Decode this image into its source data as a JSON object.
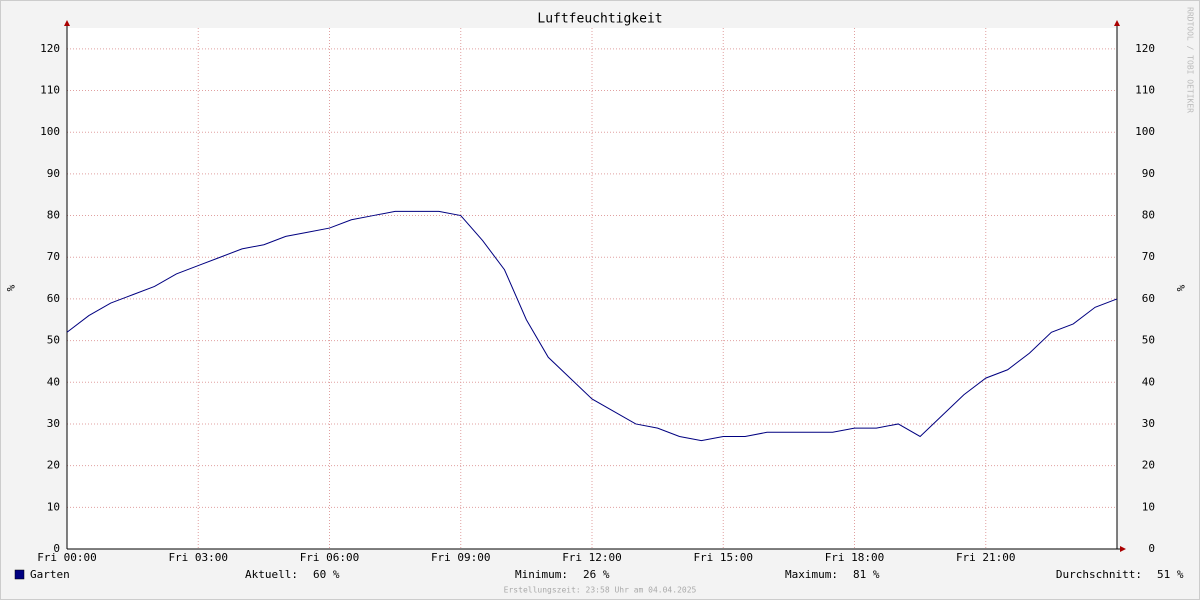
{
  "chart_data": {
    "type": "line",
    "title": "Luftfeuchtigkeit",
    "y_label": "%",
    "x": [
      0,
      0.5,
      1,
      1.5,
      2,
      2.5,
      3,
      3.5,
      4,
      4.5,
      5,
      5.5,
      6,
      6.5,
      7,
      7.5,
      8,
      8.5,
      9,
      9.5,
      10,
      10.5,
      11,
      11.5,
      12,
      12.5,
      13,
      13.5,
      14,
      14.5,
      15,
      15.5,
      16,
      16.5,
      17,
      17.5,
      18,
      18.5,
      19,
      19.5,
      20,
      20.5,
      21,
      21.5,
      22,
      22.5,
      23,
      23.5,
      24
    ],
    "series": [
      {
        "name": "Garten",
        "color": "#000080",
        "values": [
          52,
          56,
          59,
          61,
          63,
          66,
          68,
          70,
          72,
          73,
          75,
          76,
          77,
          79,
          80,
          81,
          81,
          81,
          80,
          74,
          67,
          55,
          46,
          41,
          36,
          33,
          30,
          29,
          27,
          26,
          27,
          27,
          28,
          28,
          28,
          28,
          29,
          29,
          30,
          27,
          32,
          37,
          41,
          43,
          47,
          52,
          54,
          58,
          60
        ]
      }
    ],
    "xlim": [
      0,
      24
    ],
    "xticks": [
      {
        "value": 0,
        "label": "Fri 00:00"
      },
      {
        "value": 3,
        "label": "Fri 03:00"
      },
      {
        "value": 6,
        "label": "Fri 06:00"
      },
      {
        "value": 9,
        "label": "Fri 09:00"
      },
      {
        "value": 12,
        "label": "Fri 12:00"
      },
      {
        "value": 15,
        "label": "Fri 15:00"
      },
      {
        "value": 18,
        "label": "Fri 18:00"
      },
      {
        "value": 21,
        "label": "Fri 21:00"
      }
    ],
    "ylim": [
      0,
      125
    ],
    "yticks": [
      0,
      10,
      20,
      30,
      40,
      50,
      60,
      70,
      80,
      90,
      100,
      110,
      120
    ],
    "grid": true,
    "stats": [
      {
        "label": "Aktuell:",
        "value": "60 %"
      },
      {
        "label": "Minimum:",
        "value": "26 %"
      },
      {
        "label": "Maximum:",
        "value": "81 %"
      },
      {
        "label": "Durchschnitt:",
        "value": "51 %"
      }
    ],
    "footer": "Erstellungszeit: 23:58 Uhr am 04.04.2025",
    "watermark": "RRDTOOL / TOBI OETIKER"
  }
}
